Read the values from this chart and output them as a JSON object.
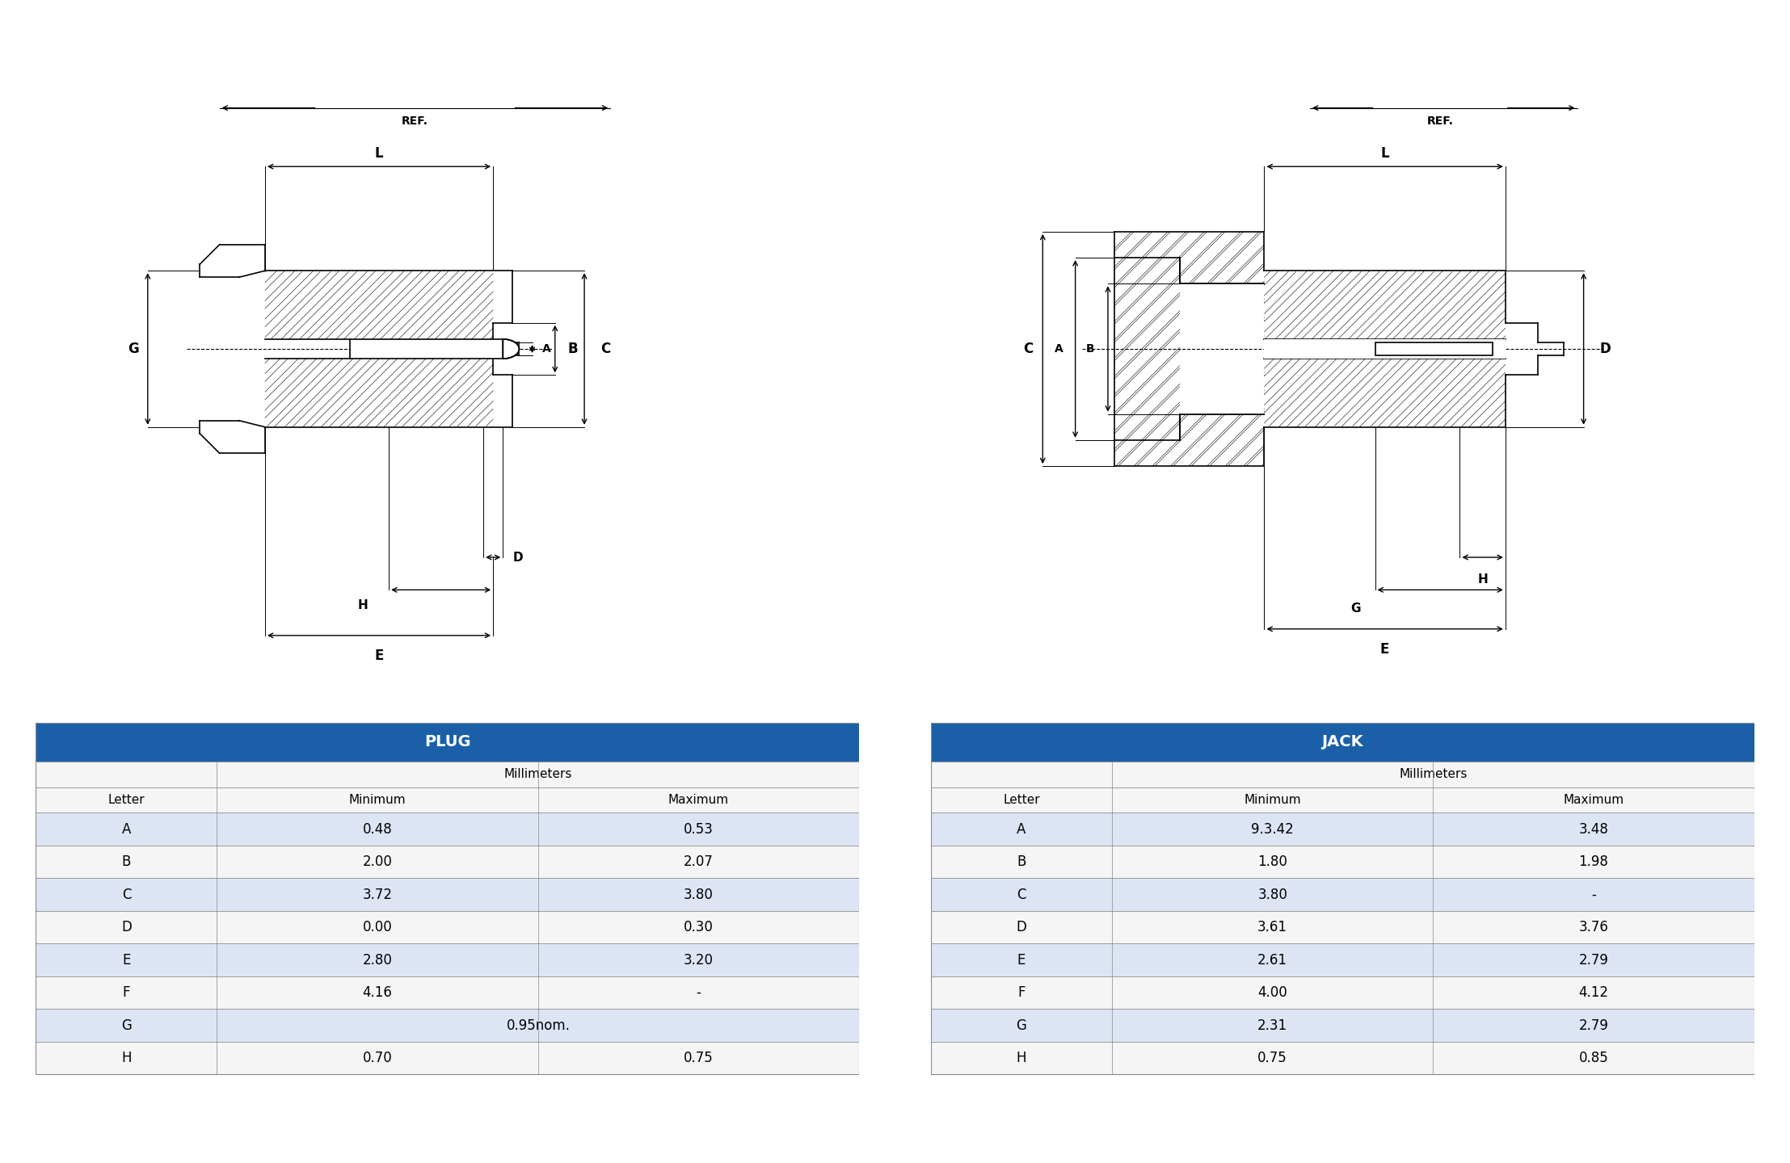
{
  "plug_title": "PLUG",
  "jack_title": "JACK",
  "plug_rows": [
    [
      "A",
      "0.48",
      "0.53"
    ],
    [
      "B",
      "2.00",
      "2.07"
    ],
    [
      "C",
      "3.72",
      "3.80"
    ],
    [
      "D",
      "0.00",
      "0.30"
    ],
    [
      "E",
      "2.80",
      "3.20"
    ],
    [
      "F",
      "4.16",
      "-"
    ],
    [
      "G",
      "0.95nom.",
      ""
    ],
    [
      "H",
      "0.70",
      "0.75"
    ]
  ],
  "jack_rows": [
    [
      "A",
      "9.3.42",
      "3.48"
    ],
    [
      "B",
      "1.80",
      "1.98"
    ],
    [
      "C",
      "3.80",
      "-"
    ],
    [
      "D",
      "3.61",
      "3.76"
    ],
    [
      "E",
      "2.61",
      "2.79"
    ],
    [
      "F",
      "4.00",
      "4.12"
    ],
    [
      "G",
      "2.31",
      "2.79"
    ],
    [
      "H",
      "0.75",
      "0.85"
    ]
  ],
  "header_bg": "#1a5fa8",
  "header_fg": "#ffffff",
  "row_odd_bg": "#dde5f5",
  "row_even_bg": "#f5f5f5",
  "border_color": "#888888",
  "bg_color": "#ffffff"
}
